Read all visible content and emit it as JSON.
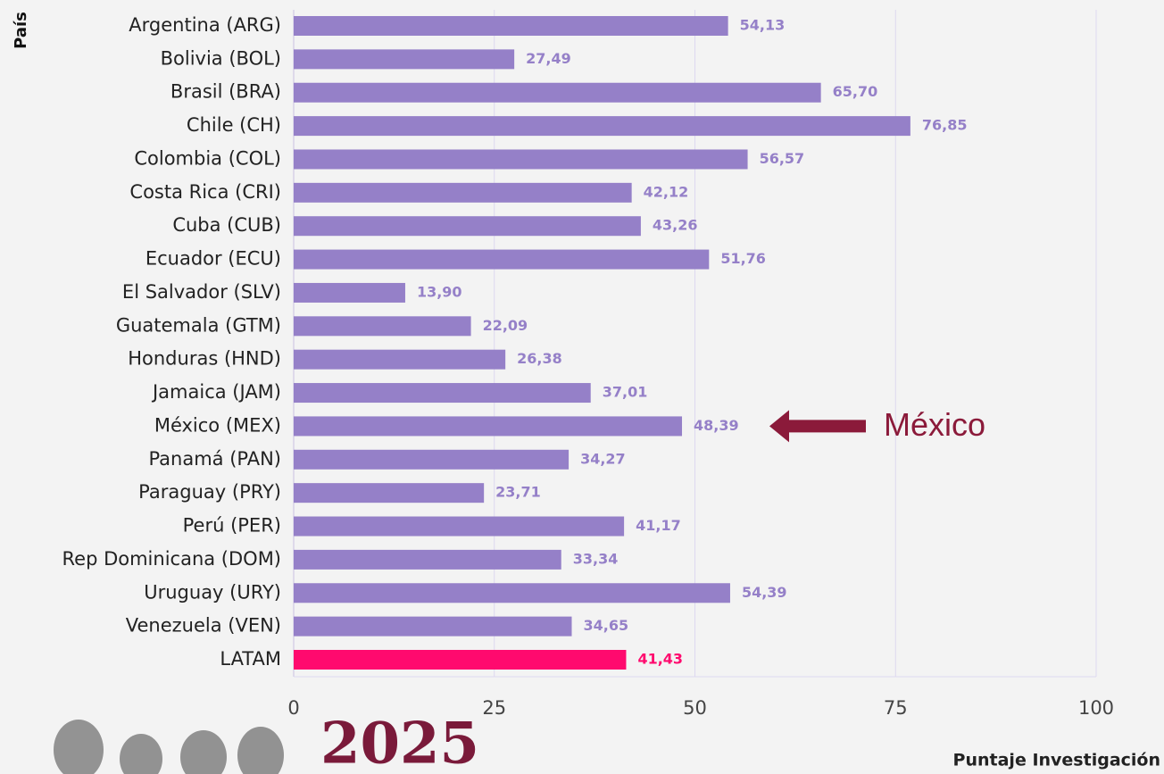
{
  "chart_data": {
    "type": "barh",
    "categories": [
      "Argentina (ARG)",
      "Bolivia (BOL)",
      "Brasil (BRA)",
      "Chile (CH)",
      "Colombia (COL)",
      "Costa Rica (CRI)",
      "Cuba (CUB)",
      "Ecuador (ECU)",
      "El Salvador (SLV)",
      "Guatemala (GTM)",
      "Honduras (HND)",
      "Jamaica (JAM)",
      "México (MEX)",
      "Panamá (PAN)",
      "Paraguay (PRY)",
      "Perú (PER)",
      "Rep Dominicana (DOM)",
      "Uruguay (URY)",
      "Venezuela (VEN)",
      "LATAM"
    ],
    "values": [
      54.13,
      27.49,
      65.7,
      76.85,
      56.57,
      42.12,
      43.26,
      51.76,
      13.9,
      22.09,
      26.38,
      37.01,
      48.39,
      34.27,
      23.71,
      41.17,
      33.34,
      54.39,
      34.65,
      41.43
    ],
    "value_labels": [
      "54,13",
      "27,49",
      "65,70",
      "76,85",
      "56,57",
      "42,12",
      "43,26",
      "51,76",
      "13,90",
      "22,09",
      "26,38",
      "37,01",
      "48,39",
      "34,27",
      "23,71",
      "41,17",
      "33,34",
      "54,39",
      "34,65",
      "41,43"
    ],
    "colors": [
      "#9580c8",
      "#9580c8",
      "#9580c8",
      "#9580c8",
      "#9580c8",
      "#9580c8",
      "#9580c8",
      "#9580c8",
      "#9580c8",
      "#9580c8",
      "#9580c8",
      "#9580c8",
      "#9580c8",
      "#9580c8",
      "#9580c8",
      "#9580c8",
      "#9580c8",
      "#9580c8",
      "#9580c8",
      "#ff0a6e"
    ],
    "xlim": [
      0,
      100
    ],
    "xticks": [
      0,
      25,
      50,
      75,
      100
    ],
    "grid": true,
    "y_axis_label": "País",
    "x_axis_label": "Puntaje Investigación",
    "annotation": {
      "text": "México",
      "color": "#8b1a3a"
    },
    "logo_text": "2025"
  }
}
